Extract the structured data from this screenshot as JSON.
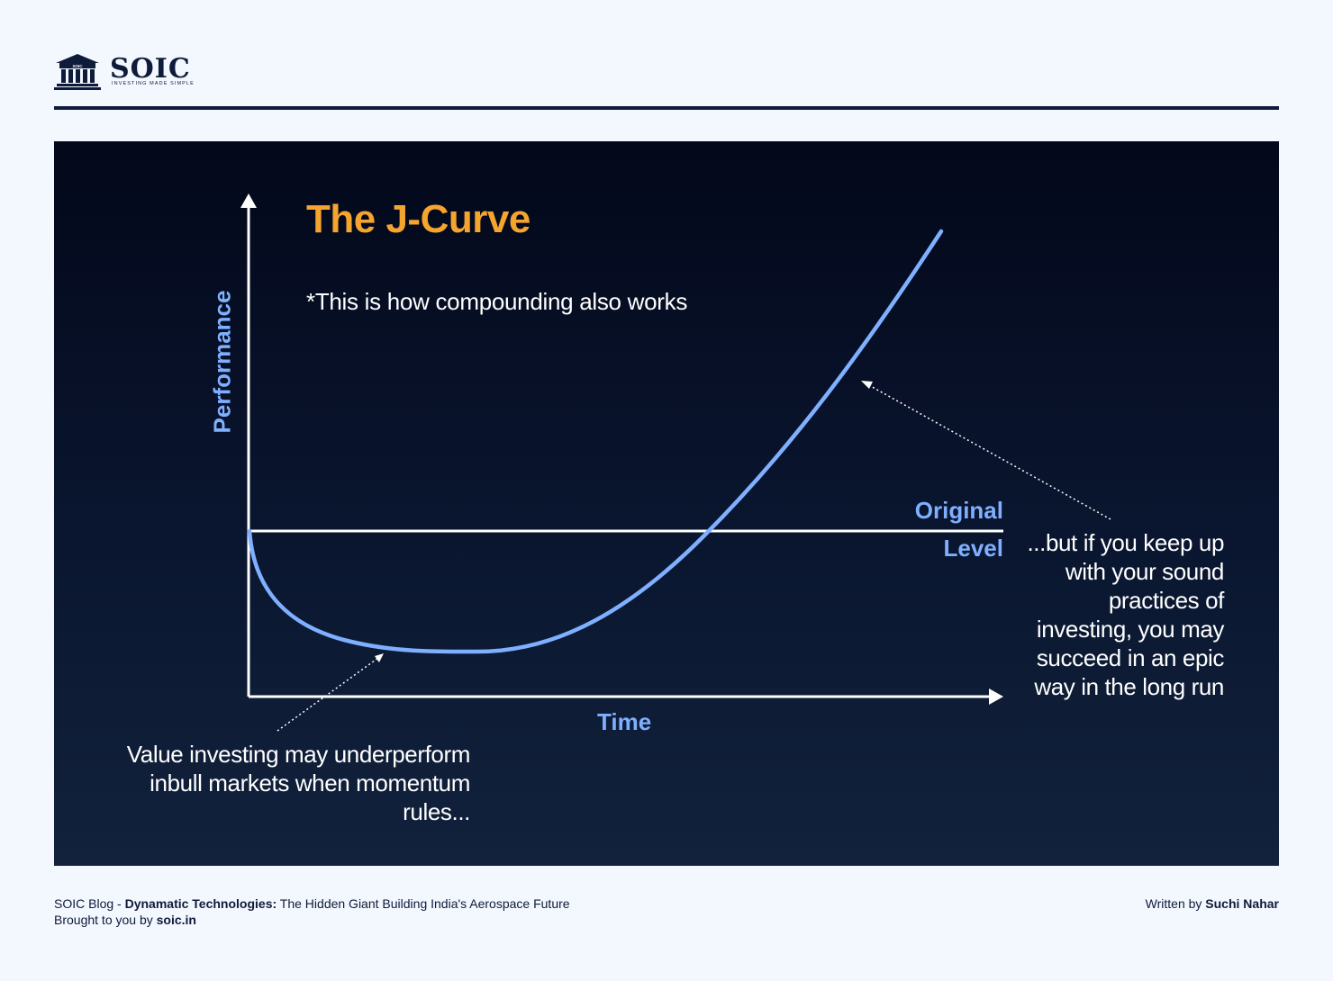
{
  "brand": {
    "name": "SOIC",
    "tagline": "INVESTING MADE SIMPLE",
    "logo_mark_text": "SOIC",
    "color": "#0f1b3a"
  },
  "diagram": {
    "title": "The J-Curve",
    "subtitle": "*This is how compounding also works",
    "y_axis_label": "Performance",
    "x_axis_label": "Time",
    "reference_line_label_line1": "Original",
    "reference_line_label_line2": "Level",
    "annotation_left": [
      "Value investing may underperform",
      "inbull markets when momentum",
      "rules..."
    ],
    "annotation_right": [
      "...but if you keep up",
      "with your sound",
      "practices of",
      "investing, you may",
      "succeed in an epic",
      "way in the long run"
    ],
    "colors": {
      "title": "#f5a52e",
      "curve": "#7fb0ff",
      "axis_labels": "#7fb0ff",
      "axes": "#ffffff",
      "text": "#ffffff",
      "background_top": "#03081a",
      "background_bottom": "#12223c"
    }
  },
  "footer": {
    "blog_prefix": "SOIC Blog - ",
    "article_bold": "Dynamatic Technologies:",
    "article_rest": " The Hidden Giant Building India's Aerospace Future",
    "brought_prefix": "Brought to you by ",
    "brought_link": "soic.in",
    "written_prefix": "Written by ",
    "author": "Suchi Nahar"
  }
}
